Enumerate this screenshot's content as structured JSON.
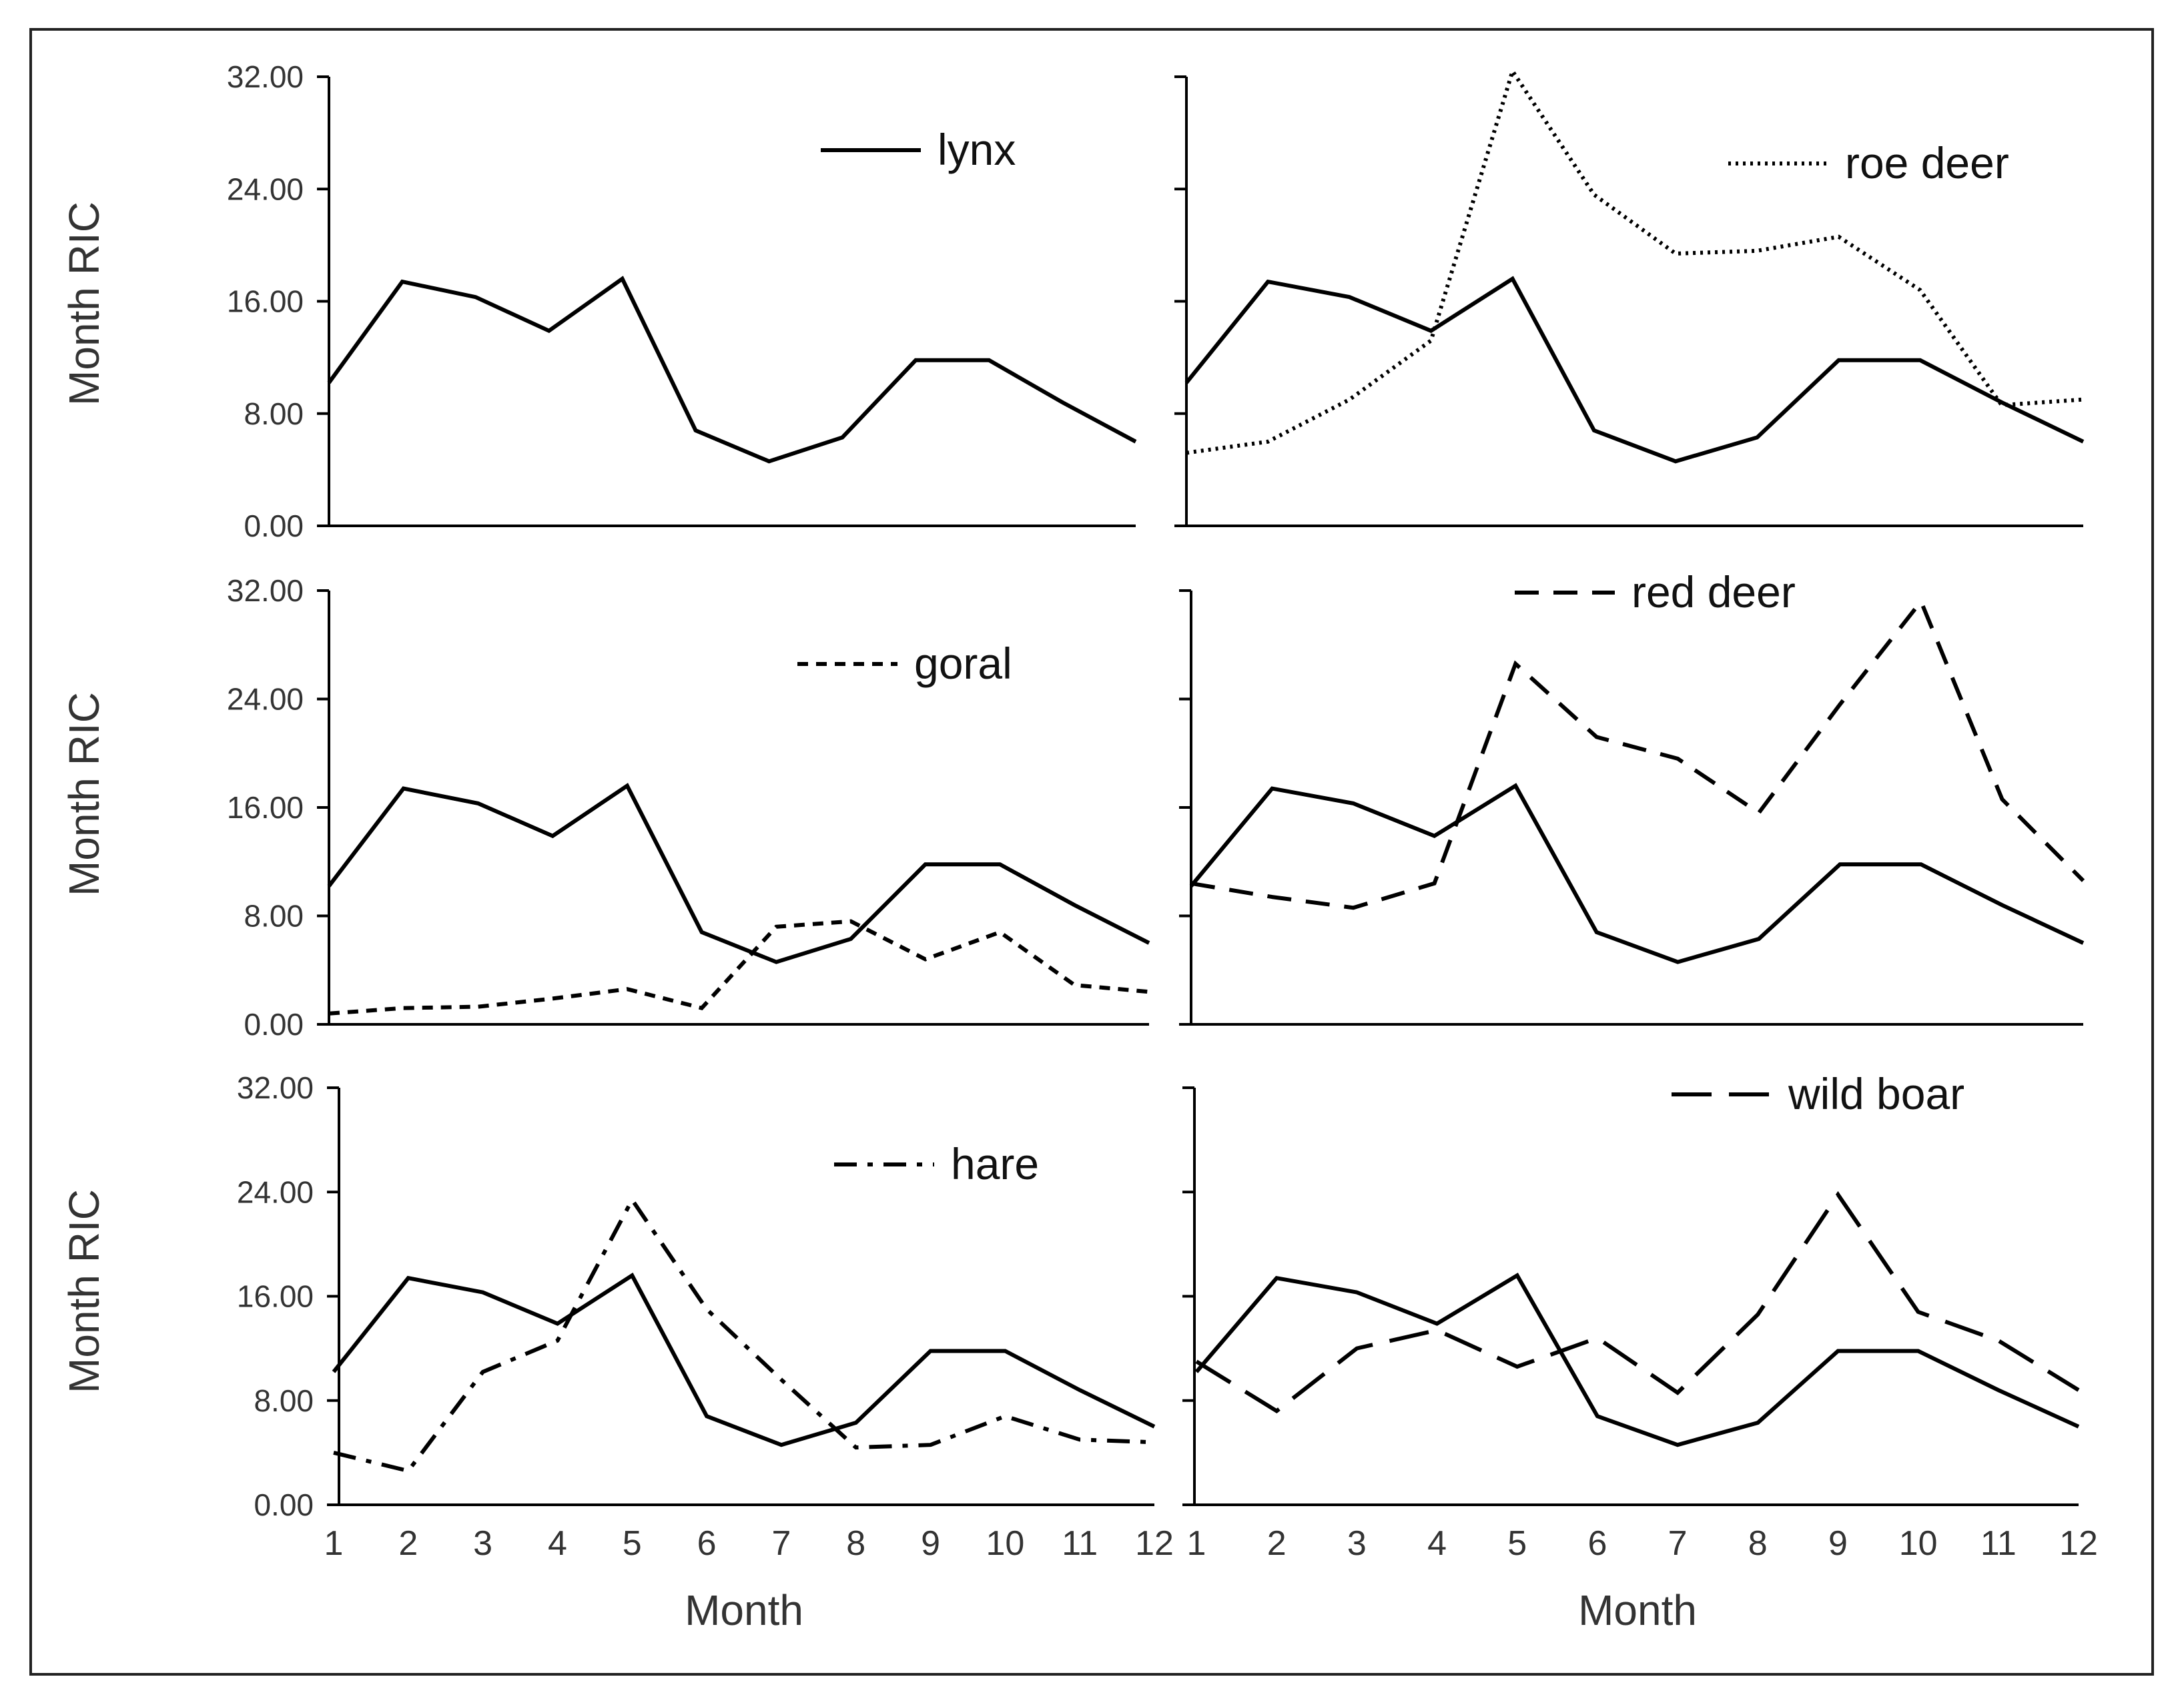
{
  "chart_data": [
    {
      "type": "line",
      "categories": [
        "1",
        "2",
        "3",
        "4",
        "5",
        "6",
        "7",
        "8",
        "9",
        "10",
        "11",
        "12"
      ],
      "ylabel": "Month RIC",
      "xlabel": "",
      "ylim": [
        0,
        32
      ],
      "yticks": [
        "0.00",
        "8.00",
        "16.00",
        "24.00",
        "32.00"
      ],
      "y_tick_labels_shown": true,
      "legend": "top-right",
      "series": [
        {
          "name": "lynx",
          "style": "solid",
          "values": [
            10.2,
            17.4,
            16.3,
            13.9,
            17.6,
            6.8,
            4.6,
            6.3,
            11.8,
            11.8,
            8.8,
            6.0
          ]
        }
      ]
    },
    {
      "type": "line",
      "categories": [
        "1",
        "2",
        "3",
        "4",
        "5",
        "6",
        "7",
        "8",
        "9",
        "10",
        "11",
        "12"
      ],
      "ylabel": "",
      "xlabel": "",
      "ylim": [
        0,
        32
      ],
      "yticks": [
        "0.00",
        "8.00",
        "16.00",
        "24.00",
        "32.00"
      ],
      "y_tick_labels_shown": false,
      "legend": "top-right",
      "series": [
        {
          "name": "lynx",
          "style": "solid",
          "values": [
            10.2,
            17.4,
            16.3,
            13.9,
            17.6,
            6.8,
            4.6,
            6.3,
            11.8,
            11.8,
            8.8,
            6.0
          ]
        },
        {
          "name": "roe deer",
          "style": "dotted",
          "values": [
            5.2,
            6.0,
            9.0,
            13.2,
            32.4,
            23.6,
            19.4,
            19.6,
            20.6,
            16.8,
            8.6,
            9.0
          ]
        }
      ]
    },
    {
      "type": "line",
      "categories": [
        "1",
        "2",
        "3",
        "4",
        "5",
        "6",
        "7",
        "8",
        "9",
        "10",
        "11",
        "12"
      ],
      "ylabel": "Month RIC",
      "xlabel": "",
      "ylim": [
        0,
        32
      ],
      "yticks": [
        "0.00",
        "8.00",
        "16.00",
        "24.00",
        "32.00"
      ],
      "y_tick_labels_shown": true,
      "legend": "top-right",
      "series": [
        {
          "name": "lynx",
          "style": "solid",
          "values": [
            10.2,
            17.4,
            16.3,
            13.9,
            17.6,
            6.8,
            4.6,
            6.3,
            11.8,
            11.8,
            8.8,
            6.0
          ]
        },
        {
          "name": "goral",
          "style": "short-dash",
          "values": [
            0.8,
            1.2,
            1.3,
            1.9,
            2.6,
            1.2,
            7.2,
            7.6,
            4.8,
            6.8,
            2.9,
            2.4
          ]
        }
      ]
    },
    {
      "type": "line",
      "categories": [
        "1",
        "2",
        "3",
        "4",
        "5",
        "6",
        "7",
        "8",
        "9",
        "10",
        "11",
        "12"
      ],
      "ylabel": "",
      "xlabel": "",
      "ylim": [
        0,
        32
      ],
      "yticks": [
        "0.00",
        "8.00",
        "16.00",
        "24.00",
        "32.00"
      ],
      "y_tick_labels_shown": false,
      "legend": "top-right",
      "series": [
        {
          "name": "lynx",
          "style": "solid",
          "values": [
            10.2,
            17.4,
            16.3,
            13.9,
            17.6,
            6.8,
            4.6,
            6.3,
            11.8,
            11.8,
            8.8,
            6.0
          ]
        },
        {
          "name": "red deer",
          "style": "dash",
          "values": [
            10.4,
            9.4,
            8.6,
            10.4,
            26.6,
            21.2,
            19.6,
            15.6,
            23.6,
            31.2,
            16.6,
            10.6
          ]
        }
      ]
    },
    {
      "type": "line",
      "categories": [
        "1",
        "2",
        "3",
        "4",
        "5",
        "6",
        "7",
        "8",
        "9",
        "10",
        "11",
        "12"
      ],
      "ylabel": "Month RIC",
      "xlabel": "Month",
      "ylim": [
        0,
        32
      ],
      "yticks": [
        "0.00",
        "8.00",
        "16.00",
        "24.00",
        "32.00"
      ],
      "y_tick_labels_shown": true,
      "legend": "top-right",
      "series": [
        {
          "name": "lynx",
          "style": "solid",
          "values": [
            10.2,
            17.4,
            16.3,
            13.9,
            17.6,
            6.8,
            4.6,
            6.3,
            11.8,
            11.8,
            8.8,
            6.0
          ]
        },
        {
          "name": "hare",
          "style": "dash-dot",
          "values": [
            4.0,
            2.6,
            10.2,
            12.6,
            23.4,
            15.0,
            9.6,
            4.4,
            4.6,
            6.8,
            5.0,
            4.8
          ]
        }
      ]
    },
    {
      "type": "line",
      "categories": [
        "1",
        "2",
        "3",
        "4",
        "5",
        "6",
        "7",
        "8",
        "9",
        "10",
        "11",
        "12"
      ],
      "ylabel": "",
      "xlabel": "Month",
      "ylim": [
        0,
        32
      ],
      "yticks": [
        "0.00",
        "8.00",
        "16.00",
        "24.00",
        "32.00"
      ],
      "y_tick_labels_shown": false,
      "legend": "top-right",
      "series": [
        {
          "name": "lynx",
          "style": "solid",
          "values": [
            10.2,
            17.4,
            16.3,
            13.9,
            17.6,
            6.8,
            4.6,
            6.3,
            11.8,
            11.8,
            8.8,
            6.0
          ]
        },
        {
          "name": "wild boar",
          "style": "long-dash",
          "values": [
            11.0,
            7.2,
            12.0,
            13.4,
            10.6,
            12.8,
            8.6,
            14.6,
            23.8,
            14.8,
            12.6,
            8.8
          ]
        }
      ]
    }
  ]
}
